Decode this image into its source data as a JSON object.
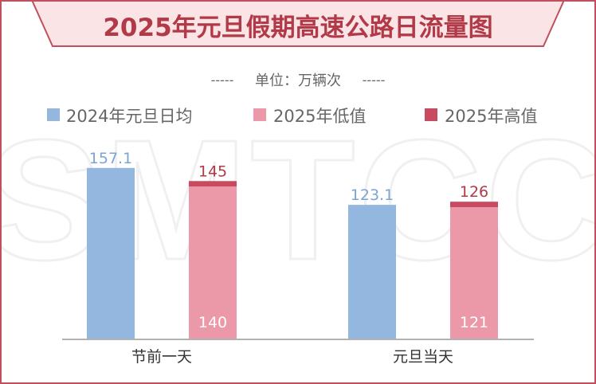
{
  "colors": {
    "frame": "#c0505e",
    "title_bg": "#fbe4e6",
    "title_text": "#b23a48",
    "series_2024_avg": "#94b7e0",
    "series_2025_low": "#eb98a8",
    "series_2025_high": "#c84a60",
    "label_2024": "#7ea4d4",
    "label_high": "#b23a48",
    "label_low_inside": "#ffffff",
    "axis": "#999999",
    "text_dark": "#333333",
    "text_muted": "#666666",
    "watermark": "#f0f0f0"
  },
  "watermark_text": "SMTCC",
  "chart_data": {
    "type": "bar",
    "title": "2025年元旦假期高速公路日流量图",
    "subtitle": "单位：万辆次",
    "subtitle_dashes": "-----",
    "categories": [
      "节前一天",
      "元旦当天"
    ],
    "series": [
      {
        "name": "2024年元旦日均",
        "values": [
          157.1,
          123.1
        ]
      },
      {
        "name": "2025年低值",
        "values": [
          140,
          121
        ]
      },
      {
        "name": "2025年高值",
        "values": [
          145,
          126
        ]
      }
    ],
    "stacking_note": "2025年低值 and 2025年高值 share one bar (low portion + top band up to high)",
    "legend_position": "top",
    "grid": false,
    "ylim": [
      0,
      165
    ]
  }
}
